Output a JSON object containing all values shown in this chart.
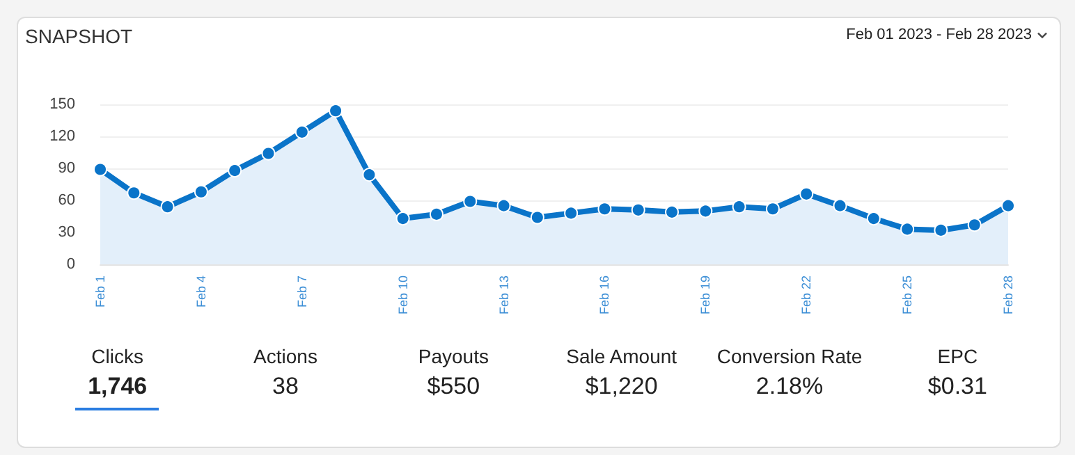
{
  "chart_data": {
    "type": "area",
    "title": "SNAPSHOT",
    "subtitle": "Feb 01 2023 - Feb 28 2023",
    "categories": [
      "Feb 1",
      null,
      null,
      "Feb 4",
      null,
      null,
      "Feb 7",
      null,
      null,
      "Feb 10",
      null,
      null,
      "Feb 13",
      null,
      null,
      "Feb 16",
      null,
      null,
      "Feb 19",
      null,
      null,
      "Feb 22",
      null,
      null,
      "Feb 25",
      null,
      null,
      "Feb 28"
    ],
    "values": [
      89,
      67,
      54,
      68,
      88,
      104,
      124,
      144,
      84,
      43,
      47,
      59,
      55,
      44,
      48,
      52,
      51,
      49,
      50,
      54,
      52,
      66,
      55,
      43,
      33,
      32,
      37,
      55
    ],
    "color": "#0a74c9",
    "ylim": [
      0,
      150
    ],
    "yticks": [
      0,
      30,
      60,
      90,
      120,
      150
    ],
    "grid": "y",
    "marker": "circle",
    "line_style": "solid",
    "annotations": [
      "Clicks",
      "1,746",
      "Actions",
      "38",
      "Payouts",
      "$550",
      "Sale Amount",
      "$1,220",
      "Conversion Rate",
      "2.18%",
      "EPC",
      "$0.31"
    ]
  }
}
